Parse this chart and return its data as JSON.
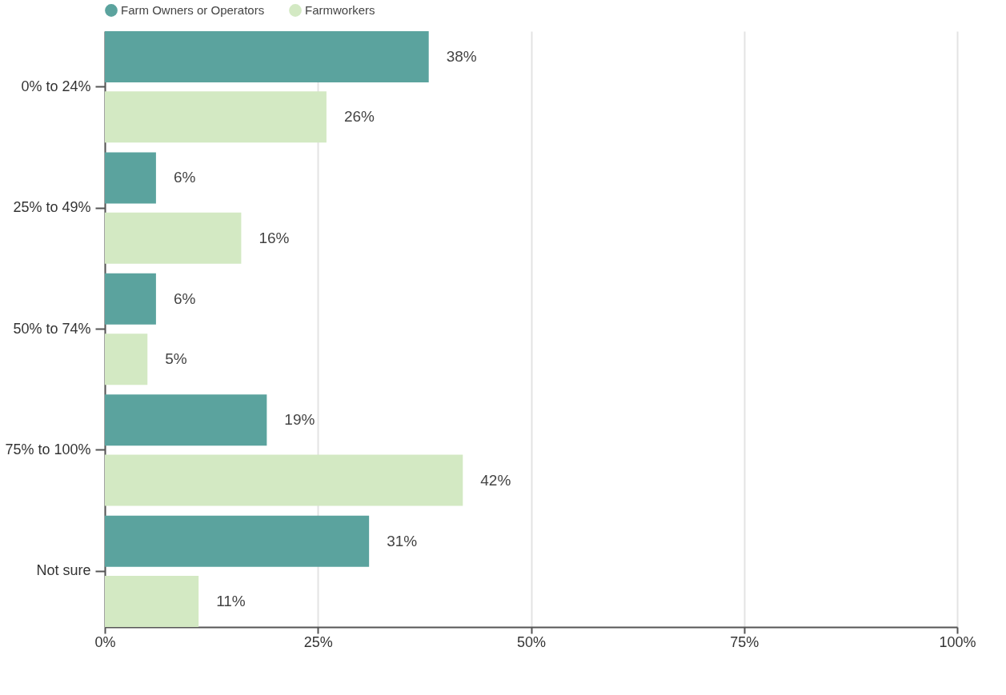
{
  "chart_data": {
    "type": "bar",
    "orientation": "horizontal",
    "categories": [
      "0% to 24%",
      "25% to 49%",
      "50% to 74%",
      "75% to 100%",
      "Not sure"
    ],
    "series": [
      {
        "name": "Farm Owners or Operators",
        "color": "#5ba39e",
        "values": [
          38,
          6,
          6,
          19,
          31
        ],
        "value_labels": [
          "38%",
          "6%",
          "6%",
          "19%",
          "31%"
        ]
      },
      {
        "name": "Farmworkers",
        "color": "#d3e9c3",
        "values": [
          26,
          16,
          5,
          42,
          11
        ],
        "value_labels": [
          "26%",
          "16%",
          "5%",
          "42%",
          "11%"
        ]
      }
    ],
    "xlim": [
      0,
      100
    ],
    "xticks": [
      {
        "value": 0,
        "label": "0%"
      },
      {
        "value": 25,
        "label": "25%"
      },
      {
        "value": 50,
        "label": "50%"
      },
      {
        "value": 75,
        "label": "75%"
      },
      {
        "value": 100,
        "label": "100%"
      }
    ],
    "grid": "x",
    "legend": "top"
  }
}
